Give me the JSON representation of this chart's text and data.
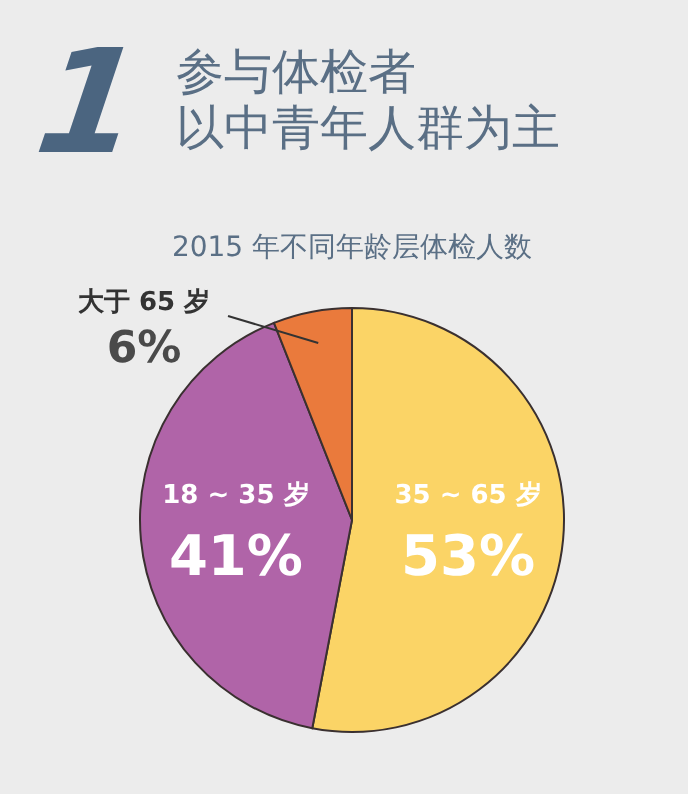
{
  "chart_data": {
    "type": "pie",
    "title": "参与体检者以中青年人群为主",
    "subtitle": "2015 年不同年龄层体检人数",
    "annotations": [
      "1"
    ],
    "categories": [
      "35 ~ 65 岁",
      "18 ~ 35 岁",
      "大于 65 岁"
    ],
    "values": [
      53,
      41,
      6
    ],
    "value_labels": [
      "53%",
      "41%",
      "6%"
    ],
    "colors": [
      "#fbd466",
      "#b064a8",
      "#ea7a3c"
    ]
  }
}
